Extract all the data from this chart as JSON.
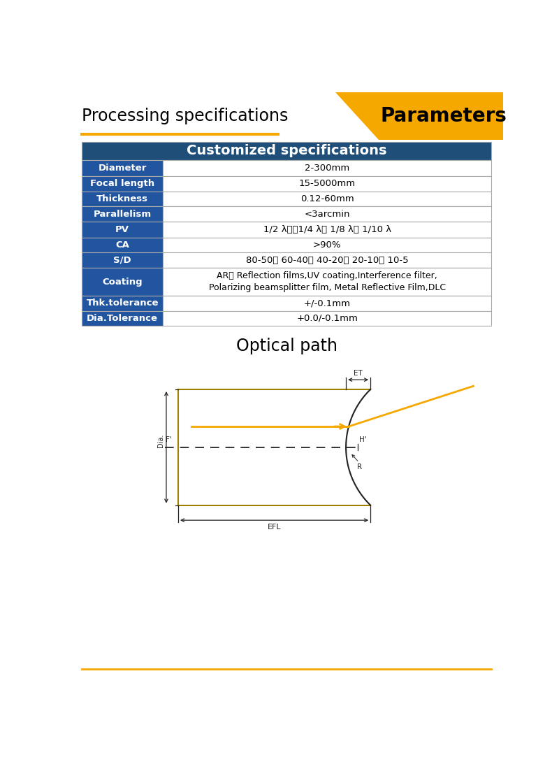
{
  "title_left": "Processing specifications",
  "title_right": "Parameters",
  "title_right_bg": "#F5A800",
  "title_left_underline": "#F5A800",
  "table_header_text": "Customized specifications",
  "table_header_bg": "#1F4E79",
  "table_header_fg": "#FFFFFF",
  "table_row_label_bg": "#2255A0",
  "table_row_label_fg": "#FFFFFF",
  "table_value_bg": "#FFFFFF",
  "table_value_fg": "#000000",
  "table_border": "#AAAAAA",
  "rows": [
    [
      "Diameter",
      "2-300mm"
    ],
    [
      "Focal length",
      "15-5000mm"
    ],
    [
      "Thickness",
      "0.12-60mm"
    ],
    [
      "Parallelism",
      "<3arcmin"
    ],
    [
      "PV",
      "1/2 λ、、1/4 λ、 1/8 λ、 1/10 λ"
    ],
    [
      "CA",
      ">90%"
    ],
    [
      "S/D",
      "80-50、 60-40、 40-20、 20-10、 10-5"
    ],
    [
      "Coating",
      "AR、 Reflection films,UV coating,Interference filter,\nPolarizing beamsplitter film, Metal Reflective Film,DLC"
    ],
    [
      "Thk.tolerance",
      "+/-0.1mm"
    ],
    [
      "Dia.Tolerance",
      "+0.0/-0.1mm"
    ]
  ],
  "optical_path_title": "Optical path",
  "diagram_color": "#222222",
  "arrow_color": "#F5A800",
  "lens_outline_color": "#A08000",
  "footer_line_color": "#F5A800",
  "background_color": "#FFFFFF"
}
